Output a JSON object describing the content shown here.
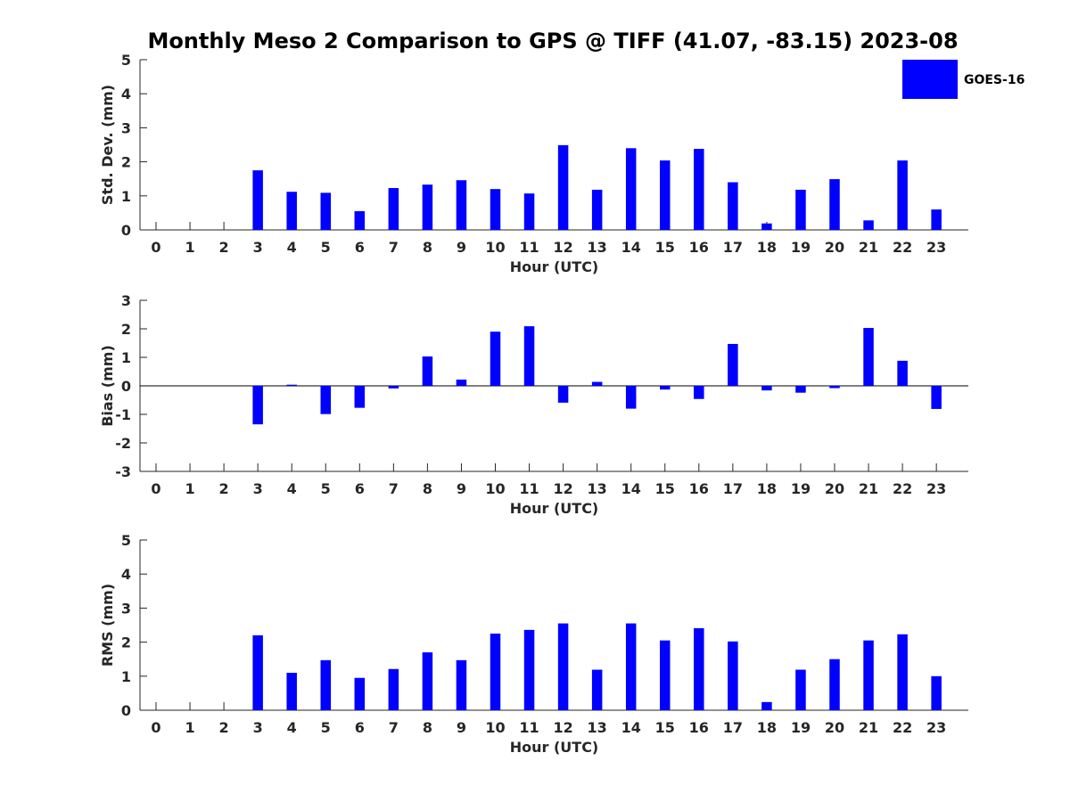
{
  "chart_title": "Monthly Meso 2 Comparison to GPS @ TIFF (41.07, -83.15) 2023-08",
  "colors": {
    "bar": "#0000ff",
    "axis": "#262626"
  },
  "legend": {
    "label": "GOES-16",
    "placement": "top-right"
  },
  "chart_data": [
    {
      "type": "bar",
      "title": "Monthly Meso 2 Comparison to GPS @ TIFF (41.07, -83.15) 2023-08",
      "xlabel": "Hour (UTC)",
      "ylabel": "Std. Dev. (mm)",
      "categories": [
        "0",
        "1",
        "2",
        "3",
        "4",
        "5",
        "6",
        "7",
        "8",
        "9",
        "10",
        "11",
        "12",
        "13",
        "14",
        "15",
        "16",
        "17",
        "18",
        "19",
        "20",
        "21",
        "22",
        "23"
      ],
      "ylim": [
        0,
        5
      ],
      "yticks": [
        0,
        1,
        2,
        3,
        4,
        5
      ],
      "grid": false,
      "series": [
        {
          "name": "GOES-16",
          "values": [
            null,
            null,
            null,
            1.75,
            1.12,
            1.09,
            0.55,
            1.23,
            1.33,
            1.46,
            1.2,
            1.07,
            2.49,
            1.18,
            2.4,
            2.04,
            2.38,
            1.4,
            0.19,
            1.18,
            1.49,
            0.28,
            2.04,
            0.6
          ]
        }
      ]
    },
    {
      "type": "bar",
      "xlabel": "Hour (UTC)",
      "ylabel": "Bias (mm)",
      "categories": [
        "0",
        "1",
        "2",
        "3",
        "4",
        "5",
        "6",
        "7",
        "8",
        "9",
        "10",
        "11",
        "12",
        "13",
        "14",
        "15",
        "16",
        "17",
        "18",
        "19",
        "20",
        "21",
        "22",
        "23"
      ],
      "ylim": [
        -3,
        3
      ],
      "yticks": [
        -3,
        -2,
        -1,
        0,
        1,
        2,
        3
      ],
      "grid": false,
      "series": [
        {
          "name": "GOES-16",
          "values": [
            null,
            null,
            null,
            -1.35,
            0.04,
            -0.99,
            -0.77,
            -0.09,
            1.03,
            0.22,
            1.9,
            2.09,
            -0.59,
            0.14,
            -0.8,
            -0.13,
            -0.46,
            1.47,
            -0.16,
            -0.24,
            -0.08,
            2.03,
            0.88,
            -0.81
          ]
        }
      ]
    },
    {
      "type": "bar",
      "xlabel": "Hour (UTC)",
      "ylabel": "RMS (mm)",
      "categories": [
        "0",
        "1",
        "2",
        "3",
        "4",
        "5",
        "6",
        "7",
        "8",
        "9",
        "10",
        "11",
        "12",
        "13",
        "14",
        "15",
        "16",
        "17",
        "18",
        "19",
        "20",
        "21",
        "22",
        "23"
      ],
      "ylim": [
        0,
        5
      ],
      "yticks": [
        0,
        1,
        2,
        3,
        4,
        5
      ],
      "grid": false,
      "series": [
        {
          "name": "GOES-16",
          "values": [
            null,
            null,
            null,
            2.2,
            1.1,
            1.47,
            0.95,
            1.21,
            1.7,
            1.47,
            2.25,
            2.36,
            2.55,
            1.19,
            2.55,
            2.05,
            2.41,
            2.02,
            0.24,
            1.19,
            1.5,
            2.05,
            2.23,
            1.0
          ]
        }
      ]
    }
  ]
}
